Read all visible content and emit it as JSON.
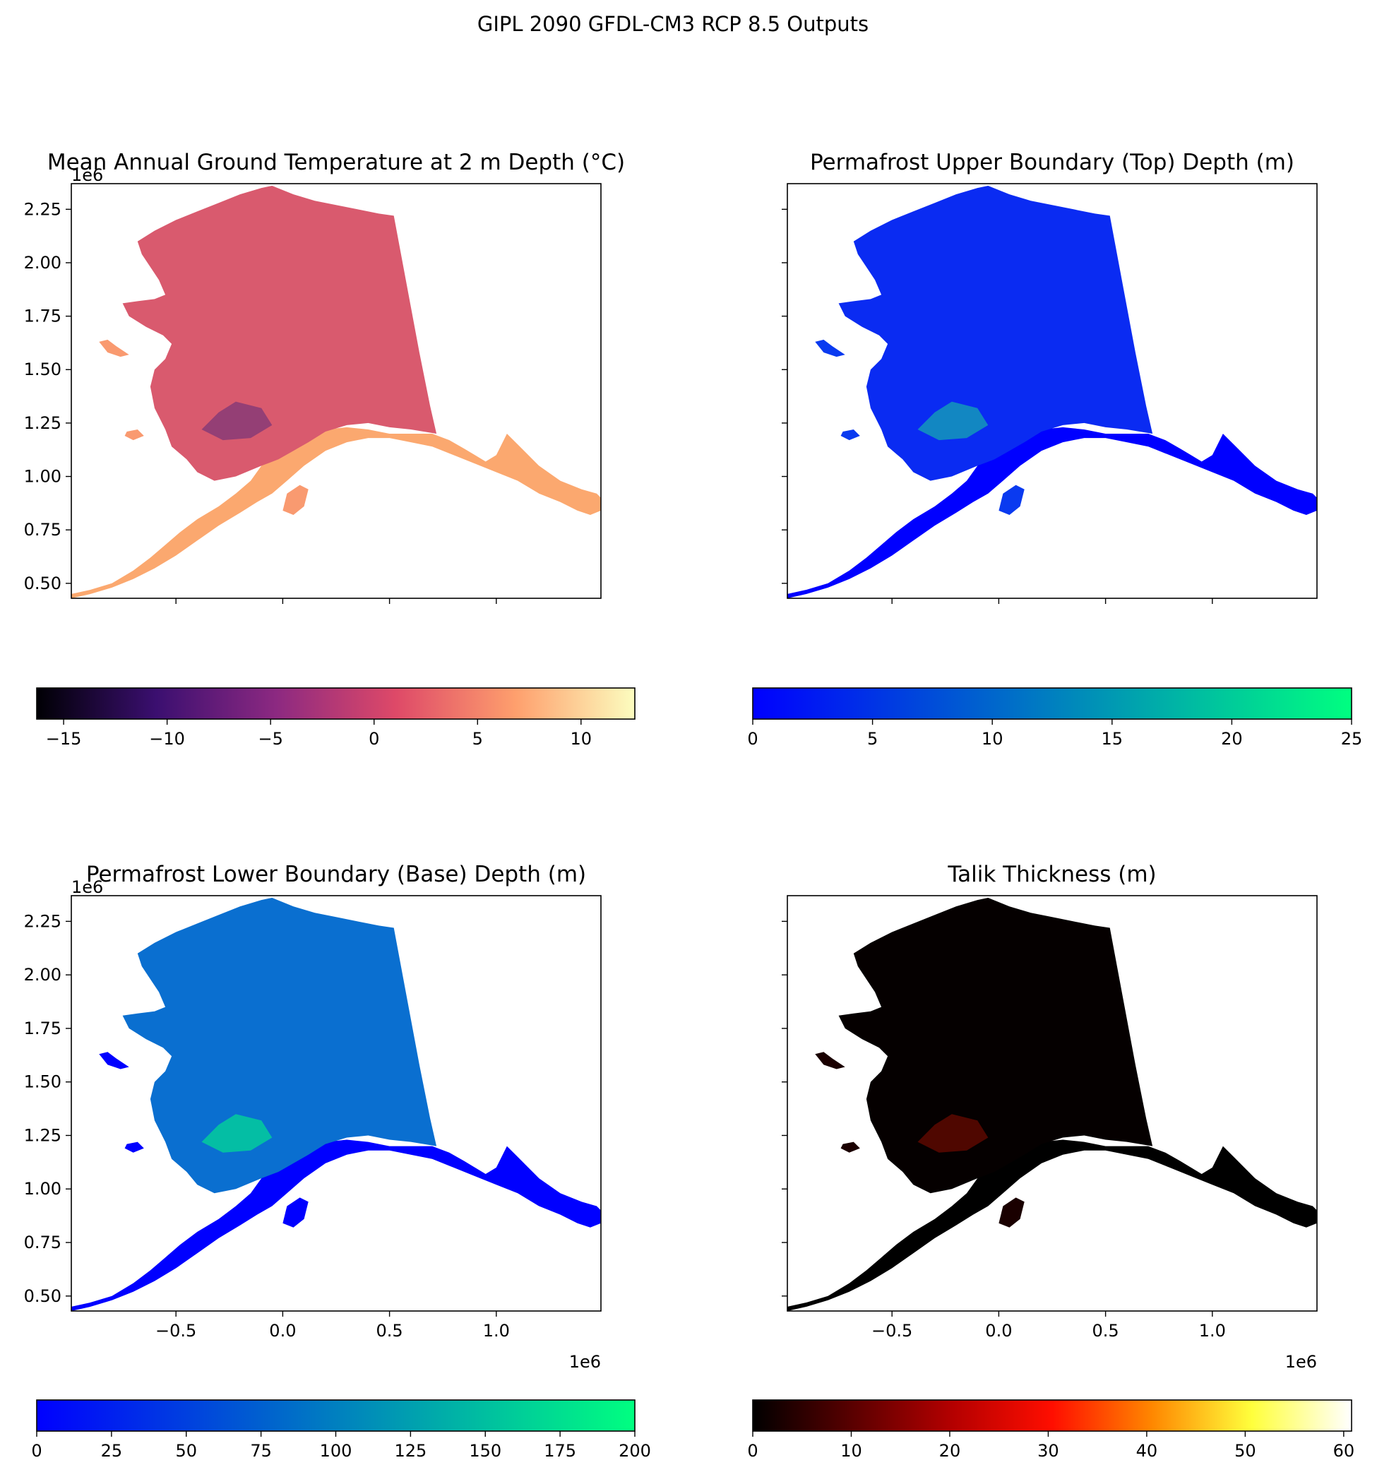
{
  "figure": {
    "suptitle": "GIPL 2090 GFDL-CM3 RCP 8.5 Outputs"
  },
  "chart_data": [
    {
      "type": "heatmap",
      "title": "Mean Annual Ground Temperature at 2 m Depth (°C)",
      "xlim": [
        -0.99,
        1.49
      ],
      "ylim": [
        0.43,
        2.37
      ],
      "x_ticks": [
        -0.5,
        0.0,
        0.5,
        1.0
      ],
      "x_ticklabels": [],
      "y_ticks": [
        0.5,
        0.75,
        1.0,
        1.25,
        1.5,
        1.75,
        2.0,
        2.25
      ],
      "y_ticklabels": [
        "0.50",
        "0.75",
        "1.00",
        "1.25",
        "1.50",
        "1.75",
        "2.00",
        "2.25"
      ],
      "x_offset_label": "",
      "y_offset_label": "1e6",
      "colorbar": {
        "colormap": "magma",
        "range": [
          -16.3,
          12.6
        ],
        "ticks": [
          -15,
          -10,
          -5,
          0,
          5,
          10
        ],
        "ticklabels": [
          "−15",
          "−10",
          "−5",
          "0",
          "5",
          "10"
        ],
        "colors": [
          "#000004",
          "#3b0f70",
          "#8c2981",
          "#de4968",
          "#fe9f6d",
          "#fcfdbf"
        ]
      }
    },
    {
      "type": "heatmap",
      "title": "Permafrost Upper Boundary (Top) Depth (m)",
      "xlim": [
        -0.99,
        1.49
      ],
      "ylim": [
        0.43,
        2.37
      ],
      "x_ticks": [
        -0.5,
        0.0,
        0.5,
        1.0
      ],
      "x_ticklabels": [],
      "y_ticks": [
        0.5,
        0.75,
        1.0,
        1.25,
        1.5,
        1.75,
        2.0,
        2.25
      ],
      "y_ticklabels": [],
      "x_offset_label": "",
      "y_offset_label": "",
      "colorbar": {
        "colormap": "winter",
        "range": [
          0,
          25
        ],
        "ticks": [
          0,
          5,
          10,
          15,
          20,
          25
        ],
        "ticklabels": [
          "0",
          "5",
          "10",
          "15",
          "20",
          "25"
        ],
        "colors": [
          "#0000ff",
          "#00ff80"
        ]
      }
    },
    {
      "type": "heatmap",
      "title": "Permafrost Lower Boundary (Base) Depth (m)",
      "xlim": [
        -0.99,
        1.49
      ],
      "ylim": [
        0.43,
        2.37
      ],
      "x_ticks": [
        -0.5,
        0.0,
        0.5,
        1.0
      ],
      "x_ticklabels": [
        "−0.5",
        "0.0",
        "0.5",
        "1.0"
      ],
      "y_ticks": [
        0.5,
        0.75,
        1.0,
        1.25,
        1.5,
        1.75,
        2.0,
        2.25
      ],
      "y_ticklabels": [
        "0.50",
        "0.75",
        "1.00",
        "1.25",
        "1.50",
        "1.75",
        "2.00",
        "2.25"
      ],
      "x_offset_label": "1e6",
      "y_offset_label": "1e6",
      "colorbar": {
        "colormap": "winter",
        "range": [
          0,
          200
        ],
        "ticks": [
          0,
          25,
          50,
          75,
          100,
          125,
          150,
          175,
          200
        ],
        "ticklabels": [
          "0",
          "25",
          "50",
          "75",
          "100",
          "125",
          "150",
          "175",
          "200"
        ],
        "colors": [
          "#0000ff",
          "#00ff80"
        ]
      }
    },
    {
      "type": "heatmap",
      "title": "Talik Thickness (m)",
      "xlim": [
        -0.99,
        1.49
      ],
      "ylim": [
        0.43,
        2.37
      ],
      "x_ticks": [
        -0.5,
        0.0,
        0.5,
        1.0
      ],
      "x_ticklabels": [
        "−0.5",
        "0.0",
        "0.5",
        "1.0"
      ],
      "y_ticks": [
        0.5,
        0.75,
        1.0,
        1.25,
        1.5,
        1.75,
        2.0,
        2.25
      ],
      "y_ticklabels": [],
      "x_offset_label": "1e6",
      "y_offset_label": "",
      "colorbar": {
        "colormap": "gist_heat",
        "range": [
          0,
          60.8
        ],
        "ticks": [
          0,
          10,
          20,
          30,
          40,
          50,
          60
        ],
        "ticklabels": [
          "0",
          "10",
          "20",
          "30",
          "40",
          "50",
          "60"
        ],
        "colors": [
          "#000000",
          "#5a0000",
          "#b40000",
          "#ff0e00",
          "#ff8700",
          "#ffff3c",
          "#ffffff"
        ]
      }
    }
  ]
}
